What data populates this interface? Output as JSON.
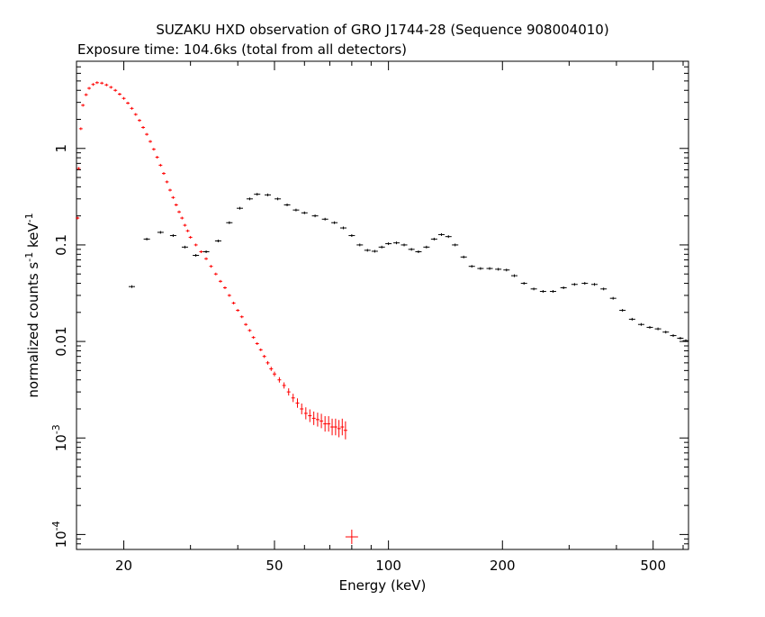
{
  "chart_data": {
    "type": "scatter",
    "title": "SUZAKU HXD observation of GRO J1744-28 (Sequence 908004010)",
    "subtitle": "Exposure time: 104.6ks (total from all detectors)",
    "xlabel": "Energy (keV)",
    "ylabel": "normalized counts s^-1 keV^-1",
    "xscale": "log",
    "yscale": "log",
    "xlim": [
      15,
      620
    ],
    "ylim": [
      7e-05,
      8
    ],
    "x_ticks": [
      "20",
      "50",
      "100",
      "200",
      "500"
    ],
    "y_ticks": [
      "10^-4",
      "10^-3",
      "0.01",
      "0.1",
      "1"
    ],
    "grid": false,
    "series": [
      {
        "color": "#ff0000",
        "points": [
          [
            15.1,
            0.19
          ],
          [
            15.2,
            0.62
          ],
          [
            15.4,
            1.6
          ],
          [
            15.6,
            2.8
          ],
          [
            15.9,
            3.6
          ],
          [
            16.2,
            4.2
          ],
          [
            16.6,
            4.6
          ],
          [
            17.0,
            4.8
          ],
          [
            17.5,
            4.75
          ],
          [
            18.0,
            4.55
          ],
          [
            18.5,
            4.3
          ],
          [
            19.0,
            4.0
          ],
          [
            19.5,
            3.65
          ],
          [
            20.0,
            3.3
          ],
          [
            20.5,
            2.95
          ],
          [
            21.0,
            2.6
          ],
          [
            21.5,
            2.25
          ],
          [
            22.0,
            1.95
          ],
          [
            22.5,
            1.65
          ],
          [
            23.0,
            1.4
          ],
          [
            23.5,
            1.18
          ],
          [
            24.0,
            0.98
          ],
          [
            24.5,
            0.81
          ],
          [
            25.0,
            0.67
          ],
          [
            25.5,
            0.55
          ],
          [
            26.0,
            0.45
          ],
          [
            26.5,
            0.37
          ],
          [
            27.0,
            0.31
          ],
          [
            27.5,
            0.26
          ],
          [
            28.0,
            0.22
          ],
          [
            28.5,
            0.19
          ],
          [
            29.0,
            0.16
          ],
          [
            29.5,
            0.14
          ],
          [
            30.0,
            0.12
          ],
          [
            31.0,
            0.1
          ],
          [
            32.0,
            0.085
          ],
          [
            33.0,
            0.072
          ],
          [
            34.0,
            0.06
          ],
          [
            35.0,
            0.05
          ],
          [
            36.0,
            0.042
          ],
          [
            37.0,
            0.036
          ],
          [
            38.0,
            0.03
          ],
          [
            39.0,
            0.025
          ],
          [
            40.0,
            0.021
          ],
          [
            41.0,
            0.018
          ],
          [
            42.0,
            0.015
          ],
          [
            43.0,
            0.013
          ],
          [
            44.0,
            0.011
          ],
          [
            45.0,
            0.0095
          ],
          [
            46.0,
            0.0082
          ],
          [
            47.0,
            0.007
          ],
          [
            48.0,
            0.006
          ],
          [
            49.0,
            0.0052
          ],
          [
            50.0,
            0.0046
          ],
          [
            51.5,
            0.004
          ],
          [
            53.0,
            0.0035
          ],
          [
            54.5,
            0.003
          ],
          [
            56.0,
            0.0026
          ],
          [
            57.5,
            0.0023
          ],
          [
            59.0,
            0.002
          ],
          [
            60.5,
            0.0018
          ],
          [
            62.0,
            0.0017
          ],
          [
            63.5,
            0.0016
          ],
          [
            65.0,
            0.00155
          ],
          [
            66.5,
            0.0015
          ],
          [
            68.0,
            0.0014
          ],
          [
            69.5,
            0.0014
          ],
          [
            71.0,
            0.0013
          ],
          [
            72.5,
            0.0013
          ],
          [
            74.0,
            0.00125
          ],
          [
            75.5,
            0.0013
          ],
          [
            77.0,
            0.0012
          ],
          [
            80.0,
            9.45e-05
          ]
        ]
      },
      {
        "color": "#000000",
        "points": [
          [
            21.0,
            0.037
          ],
          [
            23.0,
            0.115
          ],
          [
            25.0,
            0.135
          ],
          [
            27.0,
            0.125
          ],
          [
            29.0,
            0.095
          ],
          [
            31.0,
            0.078
          ],
          [
            33.0,
            0.085
          ],
          [
            35.5,
            0.11
          ],
          [
            38.0,
            0.17
          ],
          [
            40.5,
            0.24
          ],
          [
            43.0,
            0.3
          ],
          [
            45.0,
            0.335
          ],
          [
            48.0,
            0.33
          ],
          [
            51.0,
            0.3
          ],
          [
            54.0,
            0.26
          ],
          [
            57.0,
            0.23
          ],
          [
            60.0,
            0.215
          ],
          [
            64.0,
            0.2
          ],
          [
            68.0,
            0.185
          ],
          [
            72.0,
            0.17
          ],
          [
            76.0,
            0.15
          ],
          [
            80.0,
            0.125
          ],
          [
            84.0,
            0.1
          ],
          [
            88.0,
            0.088
          ],
          [
            92.0,
            0.086
          ],
          [
            96.0,
            0.095
          ],
          [
            100.0,
            0.103
          ],
          [
            105.0,
            0.105
          ],
          [
            110.0,
            0.1
          ],
          [
            115.0,
            0.09
          ],
          [
            120.0,
            0.085
          ],
          [
            126.0,
            0.095
          ],
          [
            132.0,
            0.115
          ],
          [
            138.0,
            0.128
          ],
          [
            144.0,
            0.122
          ],
          [
            150.0,
            0.1
          ],
          [
            158.0,
            0.075
          ],
          [
            166.0,
            0.06
          ],
          [
            175.0,
            0.057
          ],
          [
            185.0,
            0.057
          ],
          [
            195.0,
            0.056
          ],
          [
            205.0,
            0.055
          ],
          [
            215.0,
            0.048
          ],
          [
            228.0,
            0.04
          ],
          [
            242.0,
            0.035
          ],
          [
            256.0,
            0.033
          ],
          [
            272.0,
            0.033
          ],
          [
            290.0,
            0.036
          ],
          [
            310.0,
            0.039
          ],
          [
            330.0,
            0.04
          ],
          [
            350.0,
            0.039
          ],
          [
            370.0,
            0.035
          ],
          [
            392.0,
            0.028
          ],
          [
            415.0,
            0.021
          ],
          [
            440.0,
            0.017
          ],
          [
            465.0,
            0.015
          ],
          [
            490.0,
            0.014
          ],
          [
            515.0,
            0.0135
          ],
          [
            540.0,
            0.0125
          ],
          [
            565.0,
            0.0115
          ],
          [
            590.0,
            0.0108
          ],
          [
            610.0,
            0.0102
          ]
        ]
      }
    ]
  }
}
